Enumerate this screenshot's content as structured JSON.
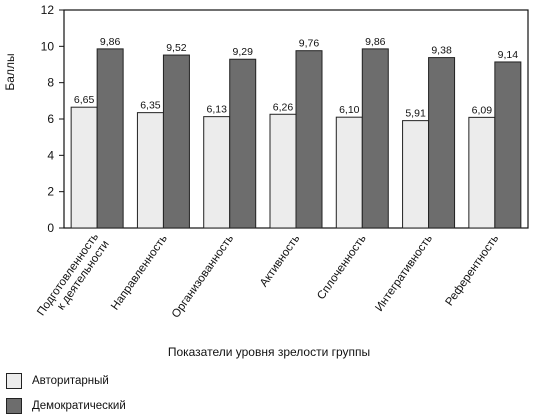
{
  "chart_data": {
    "type": "bar",
    "title": "",
    "ylabel": "Баллы",
    "xlabel": "Показатели уровня зрелости группы",
    "ylim": [
      0,
      12
    ],
    "yticks": [
      "0",
      "2",
      "4",
      "6",
      "8",
      "10",
      "12"
    ],
    "grid": false,
    "legend_position": "bottom-left",
    "categories": [
      "Подготовленность к деятельности",
      "Направленность",
      "Организованность",
      "Активность",
      "Сплоченность",
      "Интегративность",
      "Референтность"
    ],
    "series": [
      {
        "name": "Авторитарный",
        "color": "#ececec",
        "values": [
          6.65,
          6.35,
          6.13,
          6.26,
          6.1,
          5.91,
          6.09
        ],
        "labels": [
          "6,65",
          "6,35",
          "6,13",
          "6,26",
          "6,10",
          "5,91",
          "6,09"
        ]
      },
      {
        "name": "Демократический",
        "color": "#6d6d6d",
        "values": [
          9.86,
          9.52,
          9.29,
          9.76,
          9.86,
          9.38,
          9.14
        ],
        "labels": [
          "9,86",
          "9,52",
          "9,29",
          "9,76",
          "9,86",
          "9,38",
          "9,14"
        ]
      }
    ],
    "category_label_lines": [
      [
        "Подготовленность",
        "к деятельности"
      ],
      [
        "Направленность"
      ],
      [
        "Организованность"
      ],
      [
        "Активность"
      ],
      [
        "Сплоченность"
      ],
      [
        "Интегративность"
      ],
      [
        "Референтность"
      ]
    ]
  }
}
